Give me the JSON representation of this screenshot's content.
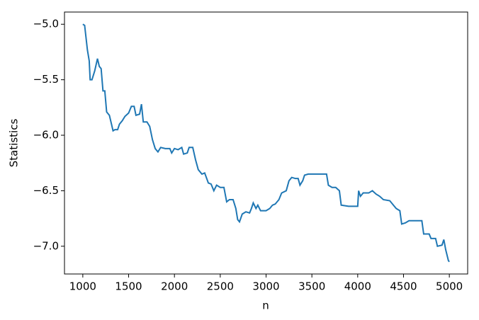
{
  "chart_data": {
    "type": "line",
    "xlabel": "n",
    "ylabel": "Statistics",
    "x": [
      1000,
      1020,
      1050,
      1070,
      1080,
      1100,
      1130,
      1160,
      1180,
      1200,
      1220,
      1240,
      1260,
      1290,
      1310,
      1330,
      1350,
      1380,
      1400,
      1430,
      1460,
      1500,
      1530,
      1560,
      1580,
      1620,
      1640,
      1660,
      1700,
      1730,
      1760,
      1790,
      1820,
      1850,
      1900,
      1950,
      1970,
      2000,
      2040,
      2080,
      2100,
      2140,
      2160,
      2200,
      2230,
      2260,
      2300,
      2330,
      2370,
      2400,
      2430,
      2460,
      2500,
      2540,
      2570,
      2600,
      2640,
      2670,
      2690,
      2710,
      2740,
      2780,
      2820,
      2840,
      2860,
      2890,
      2910,
      2940,
      3000,
      3040,
      3070,
      3100,
      3140,
      3170,
      3220,
      3250,
      3280,
      3320,
      3350,
      3370,
      3400,
      3420,
      3460,
      3500,
      3600,
      3660,
      3680,
      3720,
      3760,
      3800,
      3820,
      3900,
      4000,
      4010,
      4030,
      4060,
      4120,
      4160,
      4200,
      4240,
      4280,
      4350,
      4380,
      4420,
      4460,
      4480,
      4520,
      4560,
      4700,
      4720,
      4780,
      4800,
      4850,
      4870,
      4920,
      4940,
      4960,
      4990,
      5000
    ],
    "series": [
      {
        "name": "Statistics",
        "color": "#1f77b4",
        "values": [
          -5.0,
          -5.01,
          -5.23,
          -5.33,
          -5.5,
          -5.5,
          -5.42,
          -5.31,
          -5.38,
          -5.4,
          -5.6,
          -5.6,
          -5.79,
          -5.82,
          -5.89,
          -5.96,
          -5.95,
          -5.95,
          -5.9,
          -5.87,
          -5.83,
          -5.8,
          -5.74,
          -5.74,
          -5.82,
          -5.81,
          -5.72,
          -5.88,
          -5.88,
          -5.92,
          -6.04,
          -6.12,
          -6.15,
          -6.11,
          -6.12,
          -6.12,
          -6.16,
          -6.12,
          -6.13,
          -6.11,
          -6.17,
          -6.16,
          -6.11,
          -6.11,
          -6.22,
          -6.31,
          -6.35,
          -6.34,
          -6.43,
          -6.44,
          -6.5,
          -6.45,
          -6.47,
          -6.47,
          -6.6,
          -6.58,
          -6.58,
          -6.66,
          -6.76,
          -6.78,
          -6.71,
          -6.69,
          -6.7,
          -6.66,
          -6.61,
          -6.66,
          -6.63,
          -6.68,
          -6.68,
          -6.66,
          -6.63,
          -6.62,
          -6.58,
          -6.52,
          -6.5,
          -6.41,
          -6.38,
          -6.39,
          -6.39,
          -6.45,
          -6.41,
          -6.36,
          -6.35,
          -6.35,
          -6.35,
          -6.35,
          -6.45,
          -6.47,
          -6.47,
          -6.5,
          -6.63,
          -6.64,
          -6.64,
          -6.5,
          -6.55,
          -6.52,
          -6.52,
          -6.5,
          -6.53,
          -6.55,
          -6.58,
          -6.59,
          -6.62,
          -6.66,
          -6.68,
          -6.8,
          -6.79,
          -6.77,
          -6.77,
          -6.89,
          -6.89,
          -6.93,
          -6.93,
          -7.0,
          -6.99,
          -6.94,
          -7.03,
          -7.13,
          -7.14
        ]
      }
    ],
    "xlim": [
      800,
      5200
    ],
    "xticks": [
      1000,
      1500,
      2000,
      2500,
      3000,
      3500,
      4000,
      4500,
      5000
    ],
    "ylim": [
      -7.25,
      -4.89
    ],
    "yticks": [
      {
        "value": -5.0,
        "label": "−5.0"
      },
      {
        "value": -5.5,
        "label": "−5.5"
      },
      {
        "value": -6.0,
        "label": "−6.0"
      },
      {
        "value": -6.5,
        "label": "−6.5"
      },
      {
        "value": -7.0,
        "label": "−7.0"
      }
    ]
  }
}
